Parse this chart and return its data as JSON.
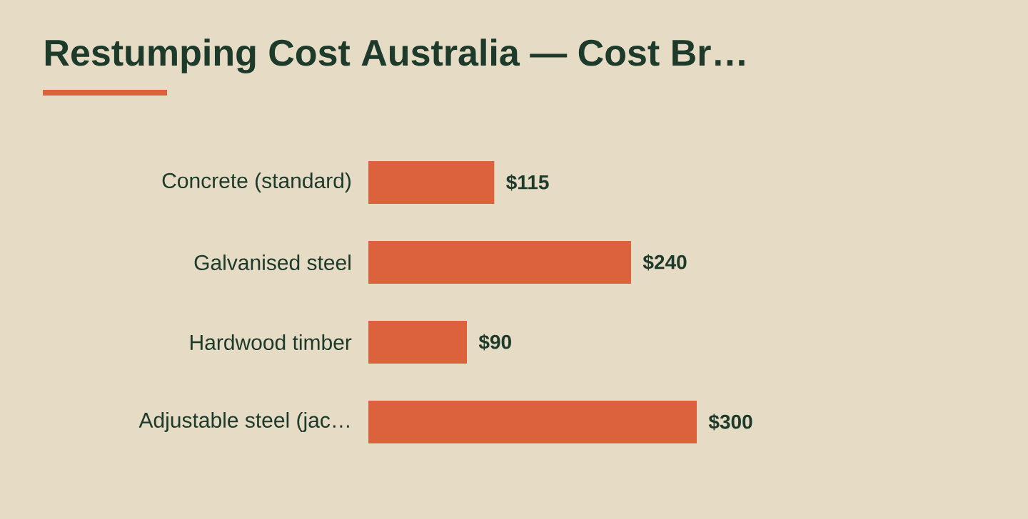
{
  "chart_data": {
    "type": "bar",
    "orientation": "horizontal",
    "title": "Restumping Cost Australia — Cost Br…",
    "categories": [
      "Concrete (standard)",
      "Galvanised steel",
      "Hardwood timber",
      "Adjustable steel (jac…"
    ],
    "values": [
      115,
      240,
      90,
      300
    ],
    "color": "#dc623d",
    "value_labels": [
      "$115",
      "$240",
      "$90",
      "$300"
    ],
    "xlim": [
      0,
      300
    ]
  }
}
